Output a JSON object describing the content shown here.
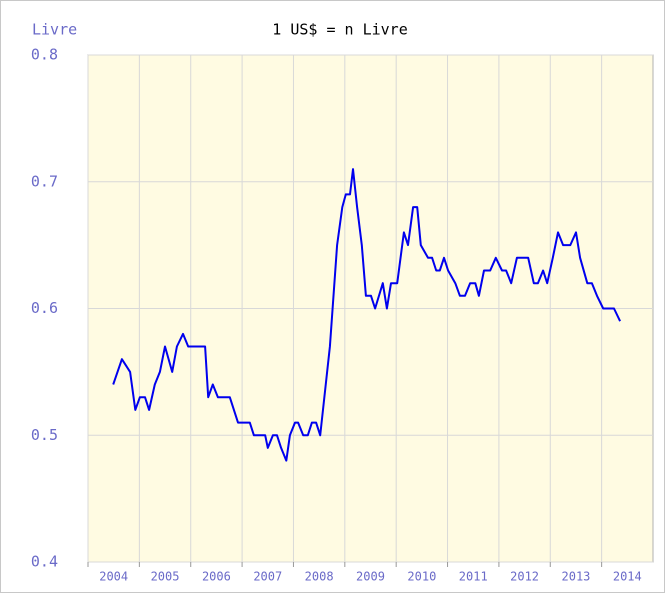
{
  "chart_data": {
    "type": "line",
    "title": "1 US$ = n Livre",
    "y_label": "Livre",
    "x": [
      2004.49,
      2004.66,
      2004.82,
      2004.92,
      2005.01,
      2005.11,
      2005.19,
      2005.3,
      2005.4,
      2005.5,
      2005.64,
      2005.73,
      2005.85,
      2005.95,
      2006.28,
      2006.34,
      2006.43,
      2006.53,
      2006.76,
      2006.92,
      2007.15,
      2007.23,
      2007.45,
      2007.5,
      2007.6,
      2007.68,
      2007.76,
      2007.86,
      2007.93,
      2008.03,
      2008.09,
      2008.19,
      2008.28,
      2008.36,
      2008.44,
      2008.52,
      2008.71,
      2008.85,
      2008.95,
      2009.02,
      2009.1,
      2009.16,
      2009.24,
      2009.33,
      2009.41,
      2009.51,
      2009.59,
      2009.74,
      2009.82,
      2009.9,
      2010.02,
      2010.15,
      2010.23,
      2010.33,
      2010.41,
      2010.48,
      2010.62,
      2010.7,
      2010.78,
      2010.85,
      2010.93,
      2011.01,
      2011.15,
      2011.24,
      2011.34,
      2011.44,
      2011.54,
      2011.61,
      2011.71,
      2011.83,
      2011.94,
      2012.06,
      2012.14,
      2012.24,
      2012.35,
      2012.57,
      2012.68,
      2012.76,
      2012.86,
      2012.94,
      2013.05,
      2013.15,
      2013.25,
      2013.39,
      2013.5,
      2013.58,
      2013.72,
      2013.81,
      2013.91,
      2014.03,
      2014.24,
      2014.36
    ],
    "series": [
      {
        "name": "Livre",
        "color": "#0000ee",
        "values": [
          0.54,
          0.56,
          0.55,
          0.52,
          0.53,
          0.53,
          0.52,
          0.54,
          0.55,
          0.57,
          0.55,
          0.57,
          0.58,
          0.57,
          0.57,
          0.53,
          0.54,
          0.53,
          0.53,
          0.51,
          0.51,
          0.5,
          0.5,
          0.49,
          0.5,
          0.5,
          0.49,
          0.48,
          0.5,
          0.51,
          0.51,
          0.5,
          0.5,
          0.51,
          0.51,
          0.5,
          0.57,
          0.65,
          0.68,
          0.69,
          0.69,
          0.71,
          0.68,
          0.65,
          0.61,
          0.61,
          0.6,
          0.62,
          0.6,
          0.62,
          0.62,
          0.66,
          0.65,
          0.68,
          0.68,
          0.65,
          0.64,
          0.64,
          0.63,
          0.63,
          0.64,
          0.63,
          0.62,
          0.61,
          0.61,
          0.62,
          0.62,
          0.61,
          0.63,
          0.63,
          0.64,
          0.63,
          0.63,
          0.62,
          0.64,
          0.64,
          0.62,
          0.62,
          0.63,
          0.62,
          0.64,
          0.66,
          0.65,
          0.65,
          0.66,
          0.64,
          0.62,
          0.62,
          0.61,
          0.6,
          0.6,
          0.59
        ]
      }
    ],
    "xlim": [
      2004,
      2015
    ],
    "xticks": [
      2004,
      2005,
      2006,
      2007,
      2008,
      2009,
      2010,
      2011,
      2012,
      2013,
      2014
    ],
    "ylim": [
      0.4,
      0.8
    ],
    "yticks": [
      0.4,
      0.5,
      0.6,
      0.7,
      0.8
    ],
    "grid": true
  }
}
